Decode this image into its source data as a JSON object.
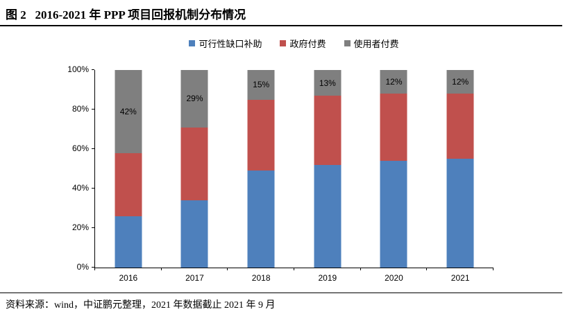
{
  "header": {
    "title": "图 2   2016-2021 年 PPP 项目回报机制分布情况"
  },
  "legend": [
    {
      "label": "可行性缺口补助",
      "color": "#4E80BC"
    },
    {
      "label": "政府付费",
      "color": "#C0504D"
    },
    {
      "label": "使用者付费",
      "color": "#7F7F7F"
    }
  ],
  "chart_data": {
    "type": "bar",
    "stacked": true,
    "percent_stacked": true,
    "title": "2016-2021 年 PPP 项目回报机制分布情况",
    "categories": [
      "2016",
      "2017",
      "2018",
      "2019",
      "2020",
      "2021"
    ],
    "series": [
      {
        "name": "可行性缺口补助",
        "color": "#4E80BC",
        "values": [
          26,
          34,
          49,
          52,
          54,
          55
        ],
        "show_labels": false
      },
      {
        "name": "政府付费",
        "color": "#C0504D",
        "values": [
          32,
          37,
          36,
          35,
          34,
          33
        ],
        "show_labels": false
      },
      {
        "name": "使用者付费",
        "color": "#7F7F7F",
        "values": [
          42,
          29,
          15,
          13,
          12,
          12
        ],
        "show_labels": true
      }
    ],
    "data_label_format": "{value}%",
    "y_axis": {
      "min": 0,
      "max": 100,
      "tick_values": [
        0,
        20,
        40,
        60,
        80,
        100
      ],
      "tick_labels": [
        "0%",
        "20%",
        "40%",
        "60%",
        "80%",
        "100%"
      ]
    },
    "xlabel": "",
    "ylabel": "",
    "grid": false,
    "legend_position": "top"
  },
  "footer": {
    "source_note": "资料来源：wind，中证鹏元整理，2021 年数据截止 2021 年 9 月"
  }
}
